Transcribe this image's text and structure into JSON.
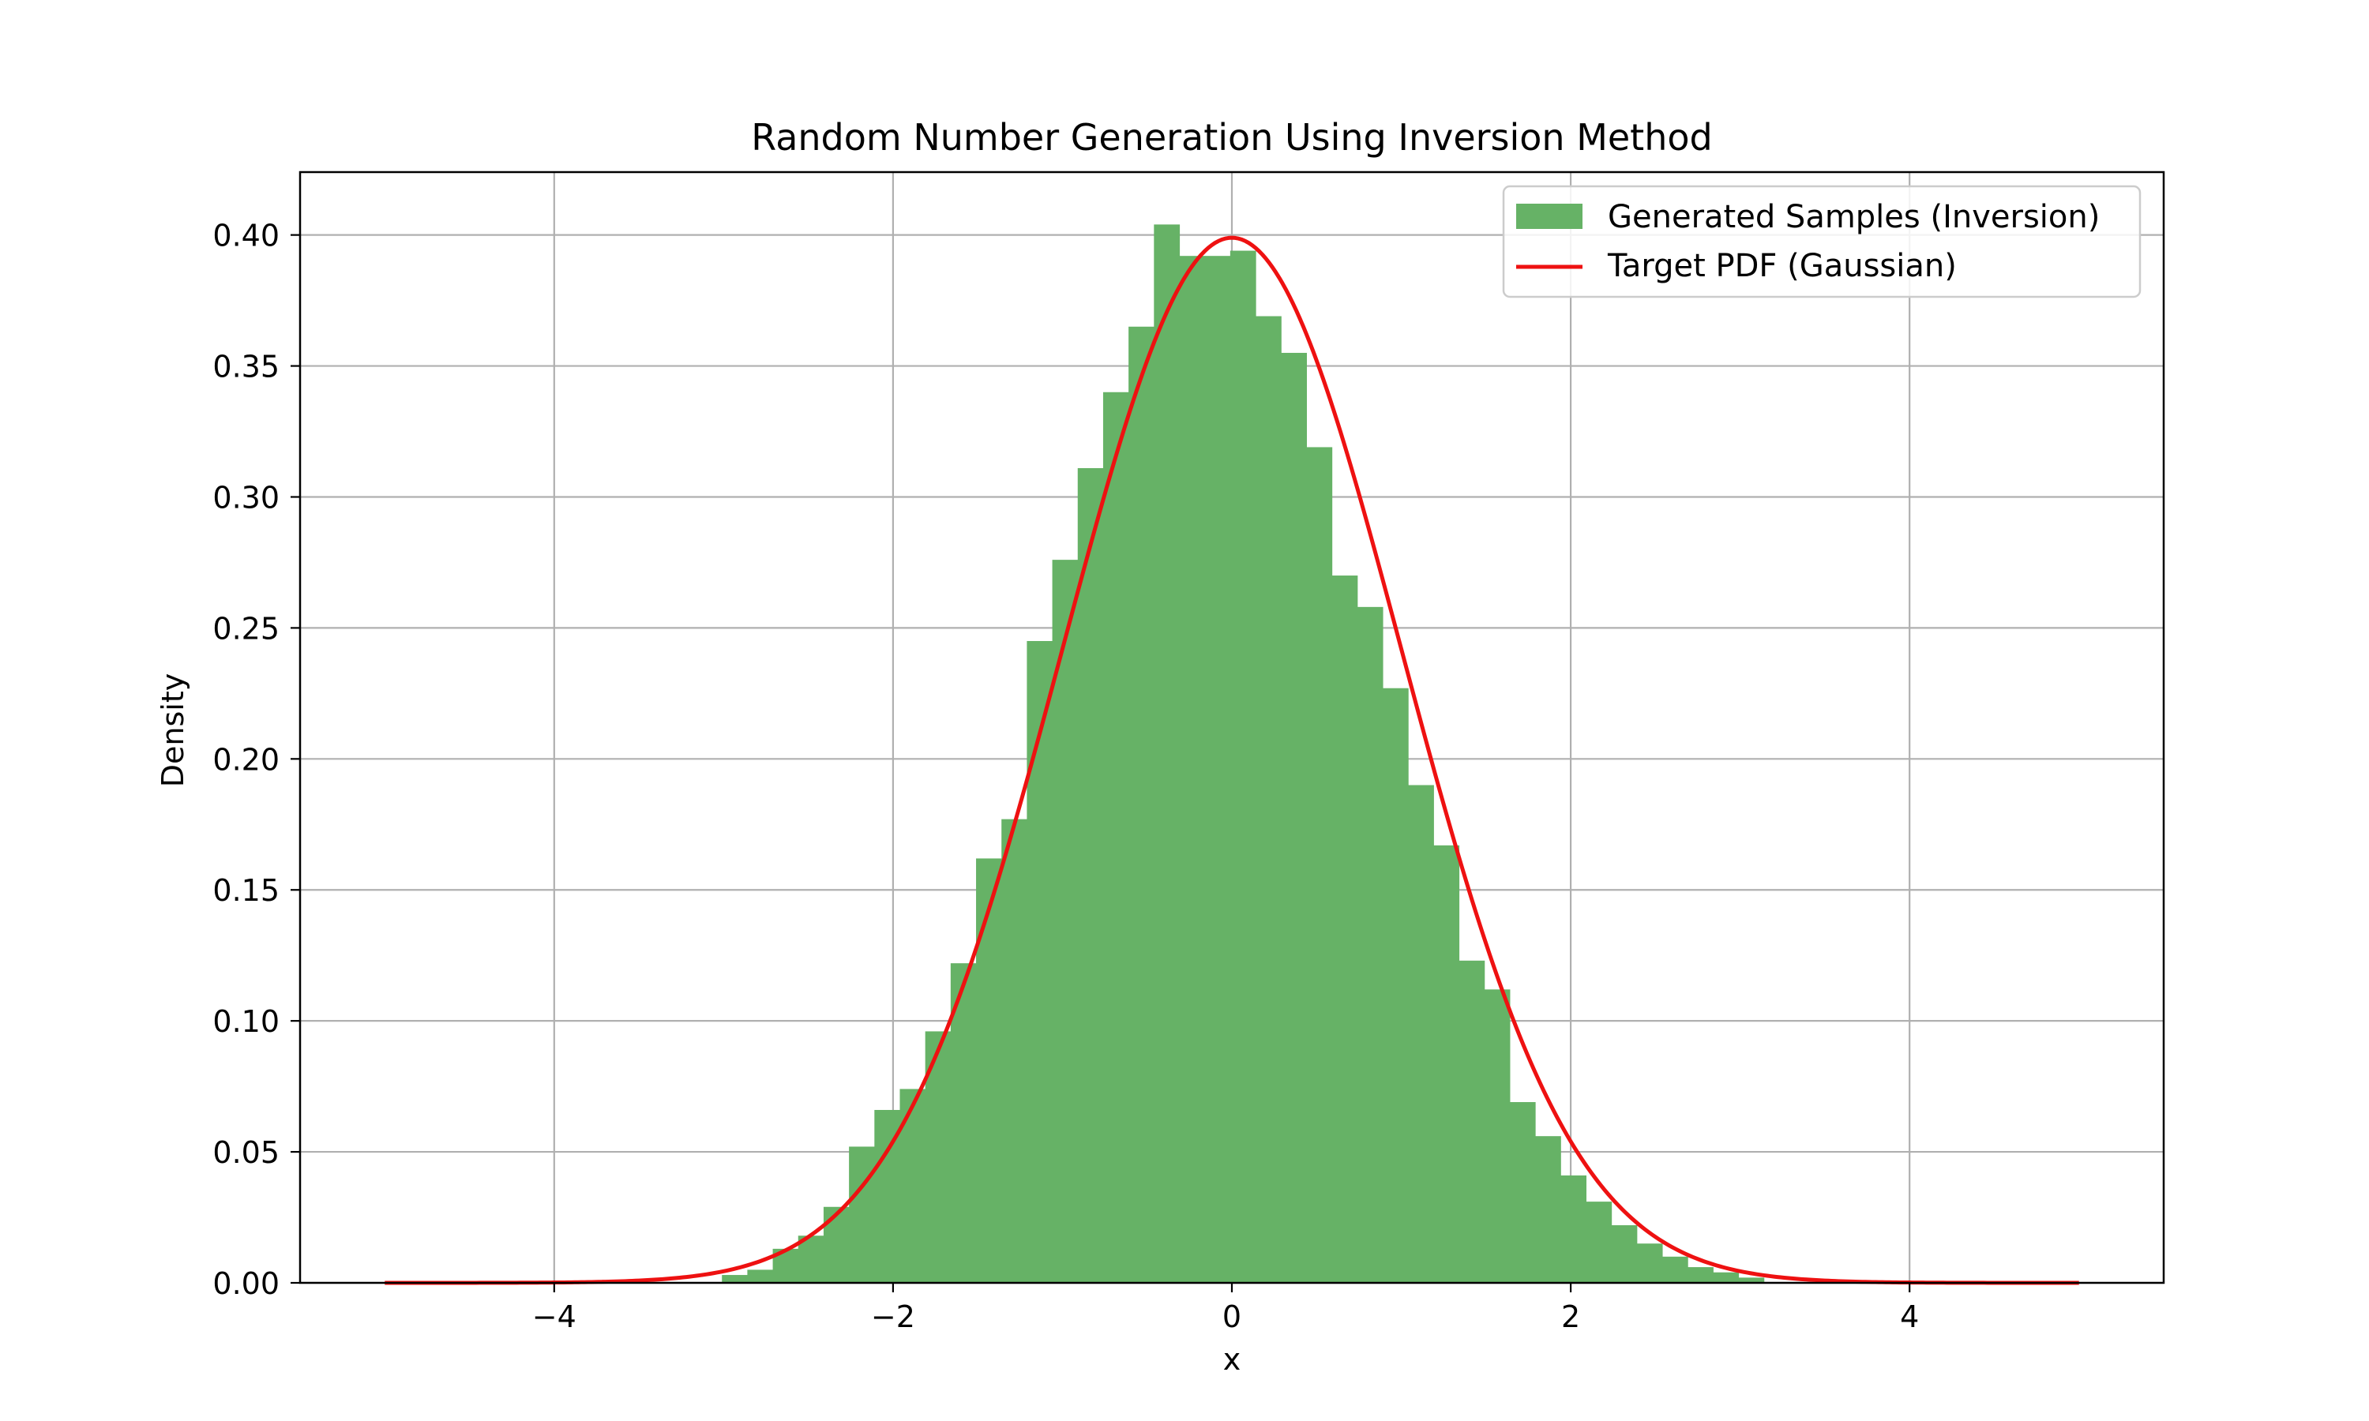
{
  "chart_data": {
    "type": "bar",
    "title": "Random Number Generation Using Inversion Method",
    "xlabel": "x",
    "ylabel": "Density",
    "xlim": [
      -5.5,
      5.5
    ],
    "ylim": [
      0,
      0.424
    ],
    "grid": true,
    "legend_position": "top-right",
    "x_ticks": [
      -4,
      -2,
      0,
      2,
      4
    ],
    "x_tick_labels": [
      "−4",
      "−2",
      "0",
      "2",
      "4"
    ],
    "y_ticks": [
      0,
      0.05,
      0.1,
      0.15,
      0.2,
      0.25,
      0.3,
      0.35,
      0.4
    ],
    "y_tick_labels": [
      "0.00",
      "0.05",
      "0.10",
      "0.15",
      "0.20",
      "0.25",
      "0.30",
      "0.35",
      "0.40"
    ],
    "histogram": {
      "name": "Generated Samples (Inversion)",
      "color": "#66b266",
      "bin_width": 0.15,
      "bins": [
        [
          -3.01,
          0.003
        ],
        [
          -2.86,
          0.005
        ],
        [
          -2.71,
          0.013
        ],
        [
          -2.56,
          0.018
        ],
        [
          -2.41,
          0.029
        ],
        [
          -2.26,
          0.052
        ],
        [
          -2.11,
          0.066
        ],
        [
          -1.96,
          0.074
        ],
        [
          -1.81,
          0.096
        ],
        [
          -1.66,
          0.122
        ],
        [
          -1.51,
          0.162
        ],
        [
          -1.36,
          0.177
        ],
        [
          -1.21,
          0.245
        ],
        [
          -1.06,
          0.276
        ],
        [
          -0.91,
          0.311
        ],
        [
          -0.76,
          0.34
        ],
        [
          -0.61,
          0.365
        ],
        [
          -0.46,
          0.404
        ],
        [
          -0.31,
          0.392
        ],
        [
          -0.16,
          0.392
        ],
        [
          -0.01,
          0.394
        ],
        [
          0.14,
          0.369
        ],
        [
          0.29,
          0.355
        ],
        [
          0.44,
          0.319
        ],
        [
          0.59,
          0.27
        ],
        [
          0.74,
          0.258
        ],
        [
          0.89,
          0.227
        ],
        [
          1.04,
          0.19
        ],
        [
          1.19,
          0.167
        ],
        [
          1.34,
          0.123
        ],
        [
          1.49,
          0.112
        ],
        [
          1.64,
          0.069
        ],
        [
          1.79,
          0.056
        ],
        [
          1.94,
          0.041
        ],
        [
          2.09,
          0.031
        ],
        [
          2.24,
          0.022
        ],
        [
          2.39,
          0.015
        ],
        [
          2.54,
          0.01
        ],
        [
          2.69,
          0.006
        ],
        [
          2.84,
          0.004
        ],
        [
          2.99,
          0.002
        ]
      ]
    },
    "curve": {
      "name": "Target PDF (Gaussian)",
      "color": "#ee1111",
      "x_range": [
        -5,
        5
      ],
      "mean": 0,
      "std": 1
    }
  }
}
